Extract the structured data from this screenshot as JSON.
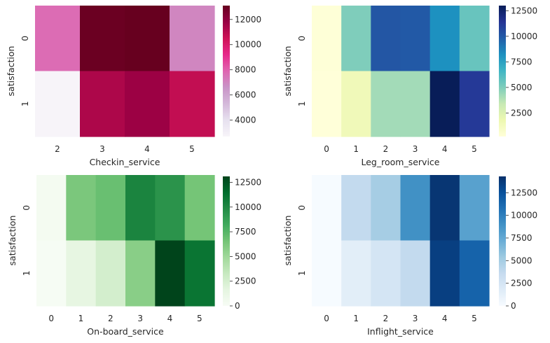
{
  "chart_data": [
    {
      "type": "heatmap",
      "xlabel": "Checkin_service",
      "ylabel": "satisfaction",
      "x_categories": [
        "2",
        "3",
        "4",
        "5"
      ],
      "y_categories": [
        "0",
        "1"
      ],
      "values": [
        [
          7700,
          13000,
          13100,
          7000
        ],
        [
          2700,
          11300,
          11700,
          10800
        ]
      ],
      "colormap": "PuRd",
      "colors": [
        "#f7f4f9",
        "#e7e1ef",
        "#d4b9da",
        "#c994c7",
        "#df65b0",
        "#e7298a",
        "#ce1256",
        "#980043",
        "#67001f"
      ],
      "zlim": [
        2700,
        13100
      ],
      "colorbar_ticks": [
        "4000",
        "6000",
        "8000",
        "10000",
        "12000"
      ],
      "colorbar_tick_values": [
        4000,
        6000,
        8000,
        10000,
        12000
      ]
    },
    {
      "type": "heatmap",
      "xlabel": "Leg_room_service",
      "ylabel": "satisfaction",
      "x_categories": [
        "0",
        "1",
        "2",
        "3",
        "4",
        "5"
      ],
      "y_categories": [
        "0",
        "1"
      ],
      "values": [
        [
          300,
          5000,
          10100,
          10000,
          8200,
          5600
        ],
        [
          200,
          1500,
          4200,
          4200,
          13000,
          11200
        ]
      ],
      "colormap": "YlGnBu",
      "colors": [
        "#ffffd9",
        "#edf8b1",
        "#c7e9b4",
        "#7fcdbb",
        "#41b6c4",
        "#1d91c0",
        "#225ea8",
        "#253494",
        "#081d58"
      ],
      "zlim": [
        200,
        13000
      ],
      "colorbar_ticks": [
        "2500",
        "5000",
        "7500",
        "10000",
        "12500"
      ],
      "colorbar_tick_values": [
        2500,
        5000,
        7500,
        10000,
        12500
      ]
    },
    {
      "type": "heatmap",
      "xlabel": "On-board_service",
      "ylabel": "satisfaction",
      "x_categories": [
        "0",
        "1",
        "2",
        "3",
        "4",
        "5"
      ],
      "y_categories": [
        "0",
        "1"
      ],
      "values": [
        [
          300,
          6300,
          6900,
          10200,
          9400,
          6500
        ],
        [
          100,
          1500,
          2600,
          5800,
          13100,
          11000
        ]
      ],
      "colormap": "Greens",
      "colors": [
        "#f7fcf5",
        "#e5f5e0",
        "#c7e9c0",
        "#a1d99b",
        "#74c476",
        "#41ab5d",
        "#238b45",
        "#006d2c",
        "#00441b"
      ],
      "zlim": [
        0,
        13100
      ],
      "colorbar_ticks": [
        "0",
        "2500",
        "5000",
        "7500",
        "10000",
        "12500"
      ],
      "colorbar_tick_values": [
        0,
        2500,
        5000,
        7500,
        10000,
        12500
      ]
    },
    {
      "type": "heatmap",
      "xlabel": "Inflight_service",
      "ylabel": "satisfaction",
      "x_categories": [
        "0",
        "1",
        "2",
        "3",
        "4",
        "5"
      ],
      "y_categories": [
        "0",
        "1"
      ],
      "values": [
        [
          50,
          3700,
          5000,
          9000,
          14000,
          8000
        ],
        [
          50,
          1500,
          2500,
          3700,
          13500,
          11500
        ]
      ],
      "colormap": "Blues",
      "colors": [
        "#f7fbff",
        "#deebf7",
        "#c6dbef",
        "#9ecae1",
        "#6baed6",
        "#4292c6",
        "#2171b5",
        "#08519c",
        "#08306b"
      ],
      "zlim": [
        0,
        14300
      ],
      "colorbar_ticks": [
        "0",
        "2500",
        "5000",
        "7500",
        "10000",
        "12500"
      ],
      "colorbar_tick_values": [
        0,
        2500,
        5000,
        7500,
        10000,
        12500
      ]
    }
  ]
}
